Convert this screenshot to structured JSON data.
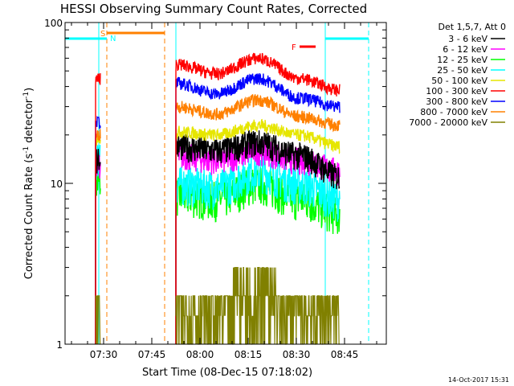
{
  "chart_data": {
    "type": "line",
    "title": "HESSI Observing Summary Count Rates, Corrected",
    "xlabel": "Start Time (08-Dec-15 07:18:02)",
    "ylabel_main": "Corrected Count Rate (s",
    "ylabel_sup1": "-1",
    "ylabel_mid": " detector",
    "ylabel_sup2": "-1",
    "ylabel_end": ")",
    "ylabel": "Corrected Count Rate (s-1 detector-1)",
    "yscale": "log",
    "ylim": [
      1,
      100
    ],
    "x_range_min": [
      0,
      100
    ],
    "x_ticks": [
      {
        "label": "07:30",
        "min": 12
      },
      {
        "label": "07:45",
        "min": 27
      },
      {
        "label": "08:00",
        "min": 42
      },
      {
        "label": "08:15",
        "min": 57
      },
      {
        "label": "08:30",
        "min": 72
      },
      {
        "label": "08:45",
        "min": 87
      }
    ],
    "y_ticks": [
      {
        "label": "1",
        "value": 1
      },
      {
        "label": "10",
        "value": 10
      },
      {
        "label": "100",
        "value": 100
      }
    ],
    "legend_title": "Det 1,5,7, Att 0",
    "legend_placement": "right",
    "series": [
      {
        "name": "3 - 6 keV",
        "color": "#000000"
      },
      {
        "name": "6 - 12 keV",
        "color": "#ff00ff"
      },
      {
        "name": "12 - 25 keV",
        "color": "#00ff00"
      },
      {
        "name": "25 - 50 keV",
        "color": "#00ffff"
      },
      {
        "name": "50 - 100 keV",
        "color": "#e6e600"
      },
      {
        "name": "100 - 300 keV",
        "color": "#ff0000"
      },
      {
        "name": "300 - 800 keV",
        "color": "#0000ff"
      },
      {
        "name": "800 - 7000 keV",
        "color": "#ff8000"
      },
      {
        "name": "7000 - 20000 keV",
        "color": "#808000"
      }
    ],
    "segments": [
      {
        "start_min": 9.5,
        "end_min": 11.0,
        "levels": {
          "0": 14,
          "1": 13,
          "2": 10,
          "3": 14,
          "4": 18,
          "5": 45,
          "6": 24,
          "7": 20
        }
      },
      {
        "start_min": 34.5,
        "end_min": 85.5,
        "levels": {
          "0": [
            17,
            16,
            18,
            15,
            11
          ],
          "1": [
            15,
            14,
            16,
            14,
            12
          ],
          "2": [
            8.5,
            8,
            10,
            8,
            6.5
          ],
          "3": [
            10,
            9.5,
            12,
            10,
            8
          ],
          "4": [
            21,
            20,
            23,
            20,
            17
          ],
          "5": [
            55,
            48,
            60,
            45,
            38
          ],
          "6": [
            42,
            36,
            45,
            34,
            30
          ],
          "7": [
            30,
            27,
            33,
            26,
            23
          ]
        }
      }
    ],
    "annotations": {
      "saa_label": "S",
      "night_label": "N",
      "flare_label": "F",
      "saa_bar": {
        "start_min": 13,
        "end_min": 31,
        "color": "#ff8000"
      },
      "night_bars": [
        {
          "start_min": 0,
          "end_min": 13,
          "color": "#00ffff"
        },
        {
          "start_min": 81,
          "end_min": 94.5,
          "color": "#00ffff"
        }
      ],
      "flare_bar_min": [
        73,
        78
      ],
      "v_lines": [
        {
          "min": 10.5,
          "color": "#00ffff",
          "style": "solid"
        },
        {
          "min": 13,
          "color": "#ff8000",
          "style": "dashed"
        },
        {
          "min": 31,
          "color": "#ff8000",
          "style": "dashed"
        },
        {
          "min": 34.5,
          "color": "#00ffff",
          "style": "solid"
        },
        {
          "min": 81,
          "color": "#00ffff",
          "style": "solid"
        },
        {
          "min": 94.5,
          "color": "#00ffff",
          "style": "dashed"
        }
      ]
    }
  },
  "footer": {
    "timestamp": "14-Oct-2017 15:31"
  }
}
